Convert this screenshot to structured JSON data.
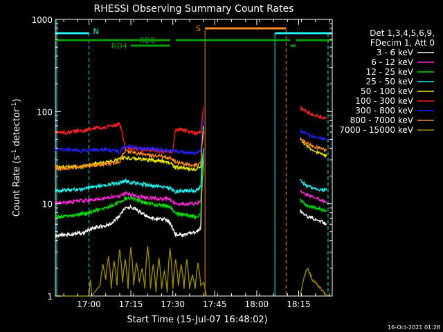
{
  "chart_data": {
    "type": "line",
    "title": "RHESSI Observing Summary Count Rates",
    "xlabel": "Start Time (15-Jul-07 16:48:02)",
    "ylabel": "Count Rate (s⁻¹ detector⁻¹)",
    "ylabel_base": "Count Rate (s",
    "ylabel_sup1": "-1",
    "ylabel_mid": " detector",
    "ylabel_sup2": "-1",
    "ylabel_end": ")",
    "y_scale": "log",
    "ylim": [
      1,
      1000
    ],
    "xlim_minutes": [
      0,
      99
    ],
    "x_ticks": [
      {
        "label": "17:00",
        "minute": 12
      },
      {
        "label": "17:15",
        "minute": 27
      },
      {
        "label": "17:30",
        "minute": 42
      },
      {
        "label": "17:45",
        "minute": 57
      },
      {
        "label": "18:00",
        "minute": 72
      },
      {
        "label": "18:15",
        "minute": 87
      }
    ],
    "y_ticks": [
      {
        "label": "1",
        "value": 1
      },
      {
        "label": "10",
        "value": 10
      },
      {
        "label": "100",
        "value": 100
      },
      {
        "label": "1000",
        "value": 1000
      }
    ],
    "legend_header": [
      "Det 1,3,4,5,6,9,",
      "FDecim 1, Att 0"
    ],
    "series": [
      {
        "name": "3 - 6 keV",
        "color": "#ffffff",
        "values": [
          [
            0,
            4.5
          ],
          [
            4,
            4.6
          ],
          [
            7,
            4.8
          ],
          [
            10,
            4.8
          ],
          [
            12,
            5.2
          ],
          [
            14,
            5.5
          ],
          [
            18,
            5.8
          ],
          [
            20,
            6.0
          ],
          [
            23,
            7.5
          ],
          [
            25,
            9.0
          ],
          [
            27,
            9.2
          ],
          [
            30,
            8.2
          ],
          [
            33,
            7.2
          ],
          [
            36,
            6.8
          ],
          [
            39,
            6.8
          ],
          [
            41,
            6.2
          ],
          [
            43,
            4.6
          ],
          [
            46,
            4.6
          ],
          [
            48,
            4.9
          ],
          [
            50,
            4.8
          ],
          [
            52,
            5.5
          ],
          [
            53,
            30
          ]
        ]
      },
      {
        "name": "6 - 12 keV",
        "color": "#ff2ad6",
        "values": [
          [
            0,
            10.5
          ],
          [
            4,
            10.3
          ],
          [
            7,
            10.6
          ],
          [
            10,
            10.8
          ],
          [
            12,
            11.0
          ],
          [
            14,
            11.2
          ],
          [
            18,
            11.5
          ],
          [
            20,
            11.8
          ],
          [
            23,
            12.2
          ],
          [
            25,
            13.0
          ],
          [
            27,
            12.6
          ],
          [
            30,
            12.0
          ],
          [
            33,
            11.6
          ],
          [
            36,
            11.5
          ],
          [
            39,
            11.4
          ],
          [
            41,
            11.1
          ],
          [
            43,
            10.0
          ],
          [
            46,
            10.0
          ],
          [
            48,
            10.1
          ],
          [
            50,
            10.1
          ],
          [
            52,
            10.5
          ],
          [
            53,
            35
          ]
        ]
      },
      {
        "name": "12 - 25 keV",
        "color": "#00e000",
        "values": [
          [
            0,
            7.2
          ],
          [
            4,
            7.3
          ],
          [
            7,
            7.6
          ],
          [
            10,
            7.8
          ],
          [
            12,
            8.0
          ],
          [
            14,
            8.5
          ],
          [
            18,
            9.0
          ],
          [
            20,
            9.5
          ],
          [
            23,
            10.5
          ],
          [
            25,
            11.5
          ],
          [
            27,
            11.4
          ],
          [
            30,
            10.8
          ],
          [
            33,
            10.2
          ],
          [
            36,
            9.8
          ],
          [
            39,
            9.6
          ],
          [
            41,
            9.2
          ],
          [
            43,
            7.8
          ],
          [
            46,
            7.6
          ],
          [
            48,
            7.4
          ],
          [
            50,
            7.2
          ],
          [
            52,
            7.8
          ],
          [
            53,
            32
          ]
        ]
      },
      {
        "name": "25 - 50 keV",
        "color": "#22f0f0",
        "values": [
          [
            0,
            13.8
          ],
          [
            4,
            14.0
          ],
          [
            7,
            14.2
          ],
          [
            10,
            14.5
          ],
          [
            12,
            15.0
          ],
          [
            14,
            15.5
          ],
          [
            18,
            16.0
          ],
          [
            20,
            16.5
          ],
          [
            23,
            17.0
          ],
          [
            25,
            17.8
          ],
          [
            27,
            17.0
          ],
          [
            30,
            16.5
          ],
          [
            33,
            16.0
          ],
          [
            36,
            15.6
          ],
          [
            39,
            15.2
          ],
          [
            41,
            14.8
          ],
          [
            43,
            13.6
          ],
          [
            46,
            13.8
          ],
          [
            48,
            14.0
          ],
          [
            50,
            14.0
          ],
          [
            52,
            15.0
          ],
          [
            53,
            40
          ]
        ]
      },
      {
        "name": "50 - 100 keV",
        "color": "#e8e800",
        "values": [
          [
            0,
            25.0
          ],
          [
            4,
            25.0
          ],
          [
            7,
            25.2
          ],
          [
            10,
            25.5
          ],
          [
            12,
            26.5
          ],
          [
            14,
            27.0
          ],
          [
            18,
            28.0
          ],
          [
            20,
            29.0
          ],
          [
            23,
            30.5
          ],
          [
            25,
            32.0
          ],
          [
            27,
            31.0
          ],
          [
            30,
            30.5
          ],
          [
            33,
            30.0
          ],
          [
            36,
            29.5
          ],
          [
            39,
            29.0
          ],
          [
            41,
            28.0
          ],
          [
            43,
            25.0
          ],
          [
            46,
            24.5
          ],
          [
            48,
            24.0
          ],
          [
            50,
            23.5
          ],
          [
            52,
            26.0
          ],
          [
            53,
            70
          ]
        ]
      },
      {
        "name": "100 - 300 keV",
        "color": "#ff2020",
        "values": [
          [
            0,
            60.0
          ],
          [
            4,
            59.0
          ],
          [
            7,
            61.0
          ],
          [
            10,
            62.0
          ],
          [
            12,
            64.0
          ],
          [
            14,
            66.0
          ],
          [
            18,
            68.0
          ],
          [
            20,
            70.0
          ],
          [
            23,
            73.0
          ],
          [
            25,
            40.0
          ],
          [
            30,
            39.0
          ],
          [
            35,
            38.0
          ],
          [
            39,
            37.0
          ],
          [
            41,
            36.5
          ],
          [
            42,
            38.0
          ],
          [
            43,
            65.0
          ],
          [
            46,
            63.0
          ],
          [
            48,
            60.0
          ],
          [
            50,
            58.0
          ],
          [
            52,
            60.0
          ],
          [
            53,
            110
          ]
        ]
      },
      {
        "name": "300 - 800 keV",
        "color": "#2222ff",
        "values": [
          [
            0,
            39.0
          ],
          [
            4,
            38.5
          ],
          [
            7,
            38.0
          ],
          [
            10,
            37.5
          ],
          [
            12,
            38.0
          ],
          [
            14,
            38.5
          ],
          [
            18,
            38.5
          ],
          [
            20,
            38.0
          ],
          [
            23,
            36.5
          ],
          [
            25,
            42.0
          ],
          [
            27,
            41.5
          ],
          [
            30,
            40.5
          ],
          [
            33,
            40.0
          ],
          [
            36,
            39.0
          ],
          [
            39,
            38.0
          ],
          [
            41,
            37.5
          ],
          [
            43,
            37.0
          ],
          [
            46,
            36.5
          ],
          [
            48,
            36.0
          ],
          [
            50,
            35.5
          ],
          [
            52,
            37.0
          ],
          [
            53,
            85
          ]
        ]
      },
      {
        "name": "800 - 7000 keV",
        "color": "#ff8c1a",
        "values": [
          [
            0,
            24.5
          ],
          [
            4,
            24.2
          ],
          [
            7,
            24.8
          ],
          [
            10,
            25.0
          ],
          [
            12,
            26.0
          ],
          [
            14,
            26.5
          ],
          [
            18,
            27.0
          ],
          [
            20,
            27.5
          ],
          [
            23,
            28.5
          ],
          [
            25,
            37.5
          ],
          [
            27,
            36.0
          ],
          [
            30,
            35.0
          ],
          [
            33,
            34.0
          ],
          [
            36,
            33.0
          ],
          [
            39,
            32.5
          ],
          [
            41,
            31.5
          ],
          [
            43,
            28.0
          ],
          [
            46,
            27.0
          ],
          [
            48,
            26.5
          ],
          [
            50,
            26.0
          ],
          [
            52,
            28.0
          ],
          [
            53,
            60
          ]
        ]
      },
      {
        "name": "7000 - 15000 keV",
        "color": "#9a8a00",
        "values": [
          [
            0,
            1
          ],
          [
            12,
            1
          ],
          [
            12.5,
            1.5
          ],
          [
            13,
            1
          ],
          [
            15,
            1.2
          ],
          [
            16,
            1.3
          ],
          [
            17,
            2.2
          ],
          [
            18,
            1.5
          ],
          [
            19,
            2.7
          ],
          [
            20,
            1.2
          ],
          [
            21,
            2.4
          ],
          [
            22,
            1.3
          ],
          [
            23,
            3.2
          ],
          [
            24,
            1.4
          ],
          [
            25,
            2.5
          ],
          [
            26,
            1.2
          ],
          [
            27,
            3.4
          ],
          [
            28,
            1.3
          ],
          [
            29,
            2.3
          ],
          [
            30,
            1.4
          ],
          [
            31,
            2.0
          ],
          [
            32,
            1.2
          ],
          [
            33,
            3.5
          ],
          [
            34,
            1.2
          ],
          [
            35,
            2.2
          ],
          [
            36,
            1.1
          ],
          [
            37,
            2.6
          ],
          [
            38,
            1.2
          ],
          [
            39,
            1.9
          ],
          [
            40,
            1.1
          ],
          [
            41,
            3.3
          ],
          [
            42,
            1.2
          ],
          [
            43,
            2.5
          ],
          [
            44,
            1.3
          ],
          [
            45,
            2.2
          ],
          [
            46,
            1.2
          ],
          [
            47,
            2.5
          ],
          [
            48,
            1.2
          ],
          [
            49,
            1.7
          ],
          [
            50,
            1.2
          ],
          [
            51,
            2.3
          ],
          [
            52,
            1.3
          ],
          [
            53,
            1.4
          ],
          [
            54,
            1
          ]
        ]
      }
    ],
    "right_segment": {
      "x_minutes": [
        87.5,
        90,
        92,
        95,
        97
      ],
      "series_values": {
        "3 - 6 keV": [
          8.5,
          7.2,
          7.0,
          6.5,
          6.0
        ],
        "6 - 12 keV": [
          14.0,
          12.5,
          12.0,
          11.0,
          10.5
        ],
        "12 - 25 keV": [
          11.0,
          9.5,
          9.2,
          8.8,
          8.5
        ],
        "25 - 50 keV": [
          18.0,
          15.5,
          15.0,
          14.2,
          14.0
        ],
        "50 - 100 keV": [
          50.0,
          42.0,
          38.0,
          35.0,
          33.0
        ],
        "100 - 300 keV": [
          110.0,
          100.0,
          93.0,
          88.0,
          84.0
        ],
        "300 - 800 keV": [
          62.0,
          57.0,
          54.0,
          52.0,
          50.0
        ],
        "800 - 7000 keV": [
          50.0,
          45.0,
          42.0,
          40.0,
          38.0
        ],
        "7000 - 15000 keV": [
          1.0,
          2.0,
          1.5,
          1.2,
          1.0
        ]
      }
    },
    "markers": {
      "N": {
        "label": "N",
        "color": "#22f0f0",
        "spans": [
          [
            0,
            12
          ],
          [
            78.5,
            99
          ]
        ],
        "level": 700
      },
      "S": {
        "label": "S",
        "color": "#ff8c1a",
        "spans": [
          [
            53.5,
            82.5
          ]
        ],
        "level": 800
      },
      "RD0": {
        "label": "RD0",
        "color": "#00a000"
      },
      "RD4": {
        "label": "RD4",
        "color": "#00a000"
      }
    },
    "timestamp": "16-Oct-2021 01:28"
  }
}
